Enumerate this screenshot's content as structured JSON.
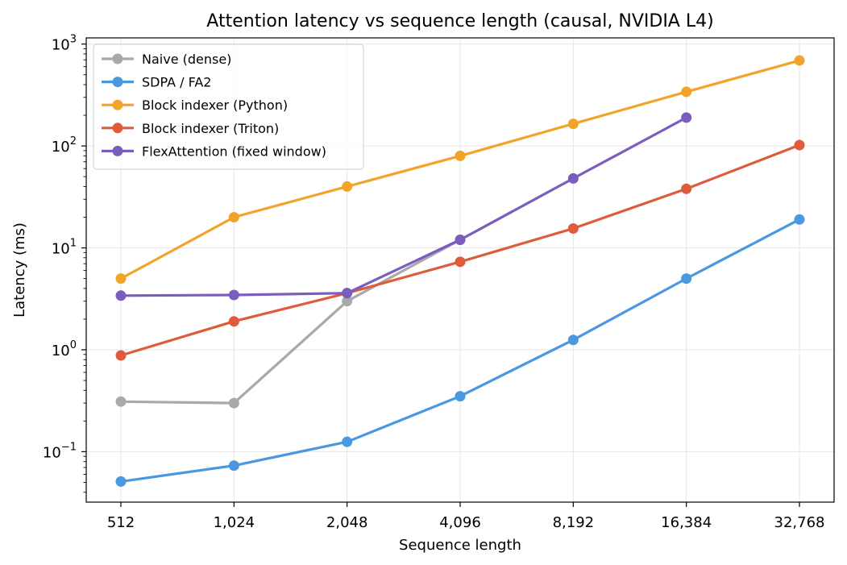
{
  "chart_data": {
    "type": "line",
    "title": "Attention latency vs sequence length (causal, NVIDIA L4)",
    "xlabel": "Sequence length",
    "ylabel": "Latency (ms)",
    "x_scale": "log2",
    "y_scale": "log10",
    "ylim": [
      0.032,
      1150
    ],
    "x": [
      512,
      1024,
      2048,
      4096,
      8192,
      16384,
      32768
    ],
    "x_tick_labels": [
      "512",
      "1,024",
      "2,048",
      "4,096",
      "8,192",
      "16,384",
      "32,768"
    ],
    "y_ticks": [
      {
        "value": 0.1,
        "base": "10",
        "exp": "−1"
      },
      {
        "value": 1,
        "base": "10",
        "exp": "0"
      },
      {
        "value": 10,
        "base": "10",
        "exp": "1"
      },
      {
        "value": 100,
        "base": "10",
        "exp": "2"
      },
      {
        "value": 1000,
        "base": "10",
        "exp": "3"
      }
    ],
    "grid": true,
    "legend_position": "top-left",
    "series": [
      {
        "name": "Naive (dense)",
        "color": "#a9a9a9",
        "values": [
          0.31,
          0.3,
          3.0,
          12.0,
          null,
          null,
          null
        ]
      },
      {
        "name": "SDPA / FA2",
        "color": "#4a98e0",
        "values": [
          0.051,
          0.073,
          0.125,
          0.35,
          1.25,
          5.0,
          19.0
        ]
      },
      {
        "name": "Block indexer (Python)",
        "color": "#f2a32a",
        "values": [
          5.0,
          20.0,
          40.0,
          80.0,
          165.0,
          340.0,
          690.0
        ]
      },
      {
        "name": "Block indexer (Triton)",
        "color": "#de5c3c",
        "values": [
          0.88,
          1.9,
          3.6,
          7.3,
          15.5,
          38.0,
          102.0
        ]
      },
      {
        "name": "FlexAttention (fixed window)",
        "color": "#7b5cbf",
        "values": [
          3.4,
          3.45,
          3.6,
          12.0,
          48.0,
          190.0,
          null
        ]
      }
    ]
  }
}
